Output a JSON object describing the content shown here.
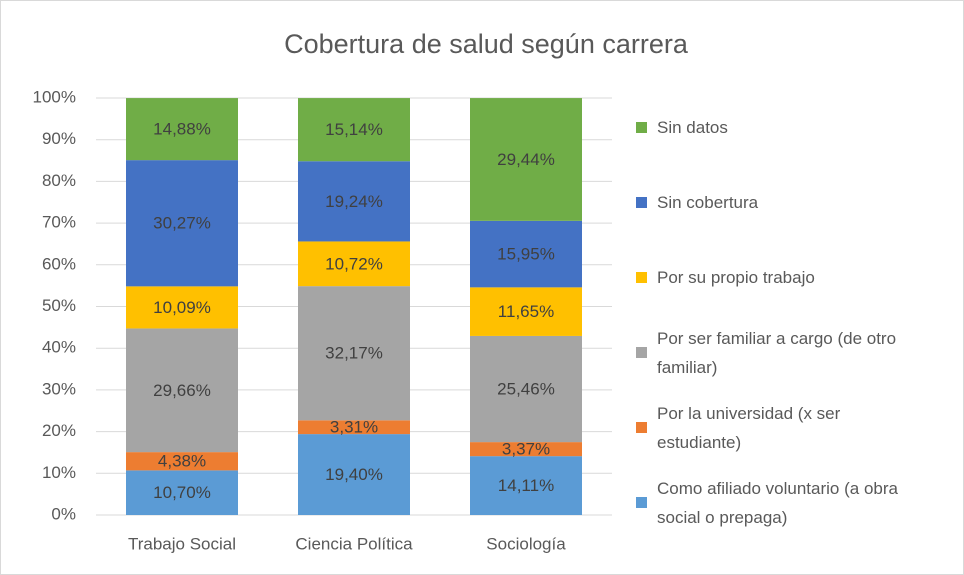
{
  "chart_data": {
    "type": "stacked_bar",
    "title": "Cobertura de salud según carrera",
    "categories": [
      "Trabajo Social",
      "Ciencia Política",
      "Sociología"
    ],
    "series": [
      {
        "name": "Como afiliado voluntario (a obra social o prepaga)",
        "color": "#5b9bd5",
        "values": [
          10.7,
          19.4,
          14.11
        ],
        "value_labels": [
          "10,70%",
          "19,40%",
          "14,11%"
        ]
      },
      {
        "name": "Por la universidad (x ser estudiante)",
        "color": "#ed7d31",
        "values": [
          4.38,
          3.31,
          3.37
        ],
        "value_labels": [
          "4,38%",
          "3,31%",
          "3,37%"
        ]
      },
      {
        "name": "Por ser familiar a cargo (de otro familiar)",
        "color": "#a5a5a5",
        "values": [
          29.66,
          32.17,
          25.46
        ],
        "value_labels": [
          "29,66%",
          "32,17%",
          "25,46%"
        ]
      },
      {
        "name": "Por su propio trabajo",
        "color": "#ffc000",
        "values": [
          10.09,
          10.72,
          11.65
        ],
        "value_labels": [
          "10,09%",
          "10,72%",
          "11,65%"
        ]
      },
      {
        "name": "Sin cobertura",
        "color": "#4472c4",
        "values": [
          30.27,
          19.24,
          15.95
        ],
        "value_labels": [
          "30,27%",
          "19,24%",
          "15,95%"
        ]
      },
      {
        "name": "Sin datos",
        "color": "#70ad47",
        "values": [
          14.88,
          15.14,
          29.44
        ],
        "value_labels": [
          "14,88%",
          "15,14%",
          "29,44%"
        ]
      }
    ],
    "ylim": [
      0,
      100
    ],
    "yticks": [
      {
        "value": 0,
        "label": "0%"
      },
      {
        "value": 10,
        "label": "10%"
      },
      {
        "value": 20,
        "label": "20%"
      },
      {
        "value": 30,
        "label": "30%"
      },
      {
        "value": 40,
        "label": "40%"
      },
      {
        "value": 50,
        "label": "50%"
      },
      {
        "value": 60,
        "label": "60%"
      },
      {
        "value": 70,
        "label": "70%"
      },
      {
        "value": 80,
        "label": "80%"
      },
      {
        "value": 90,
        "label": "90%"
      },
      {
        "value": 100,
        "label": "100%"
      }
    ],
    "grid": true,
    "legend": "right"
  }
}
